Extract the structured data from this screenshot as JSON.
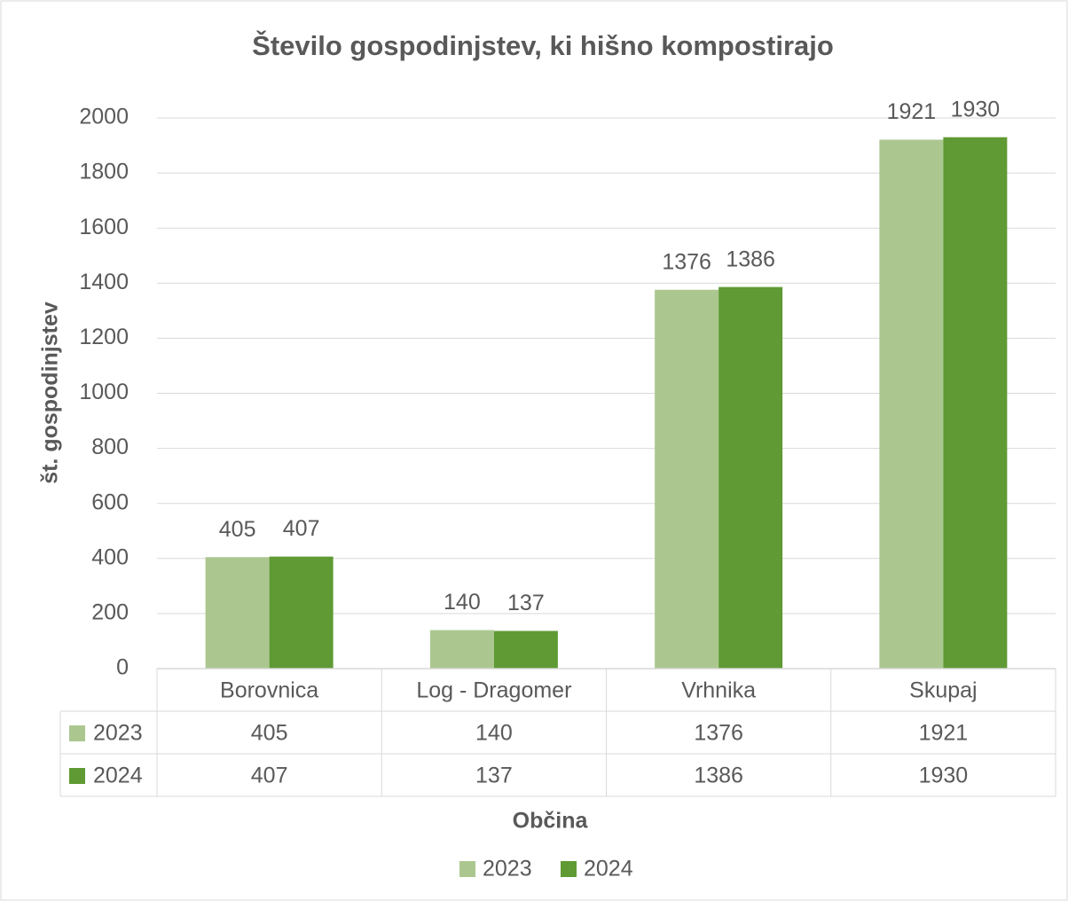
{
  "chart_data": {
    "type": "bar",
    "title": "Število gospodinjstev, ki hišno kompostirajo",
    "x_label": "Občina",
    "y_label": "št. gospodinjstev",
    "categories": [
      "Borovnica",
      "Log - Dragomer",
      "Vrhnika",
      "Skupaj"
    ],
    "series": [
      {
        "name": "2023",
        "color": "#abc78f",
        "values": [
          405,
          140,
          1376,
          1921
        ]
      },
      {
        "name": "2024",
        "color": "#5f9a34",
        "values": [
          407,
          137,
          1386,
          1930
        ]
      }
    ],
    "ylim": [
      0,
      2000
    ],
    "yticks": [
      0,
      200,
      400,
      600,
      800,
      1000,
      1200,
      1400,
      1600,
      1800,
      2000
    ],
    "grid": true,
    "legend": "bottom",
    "data_table": true
  }
}
